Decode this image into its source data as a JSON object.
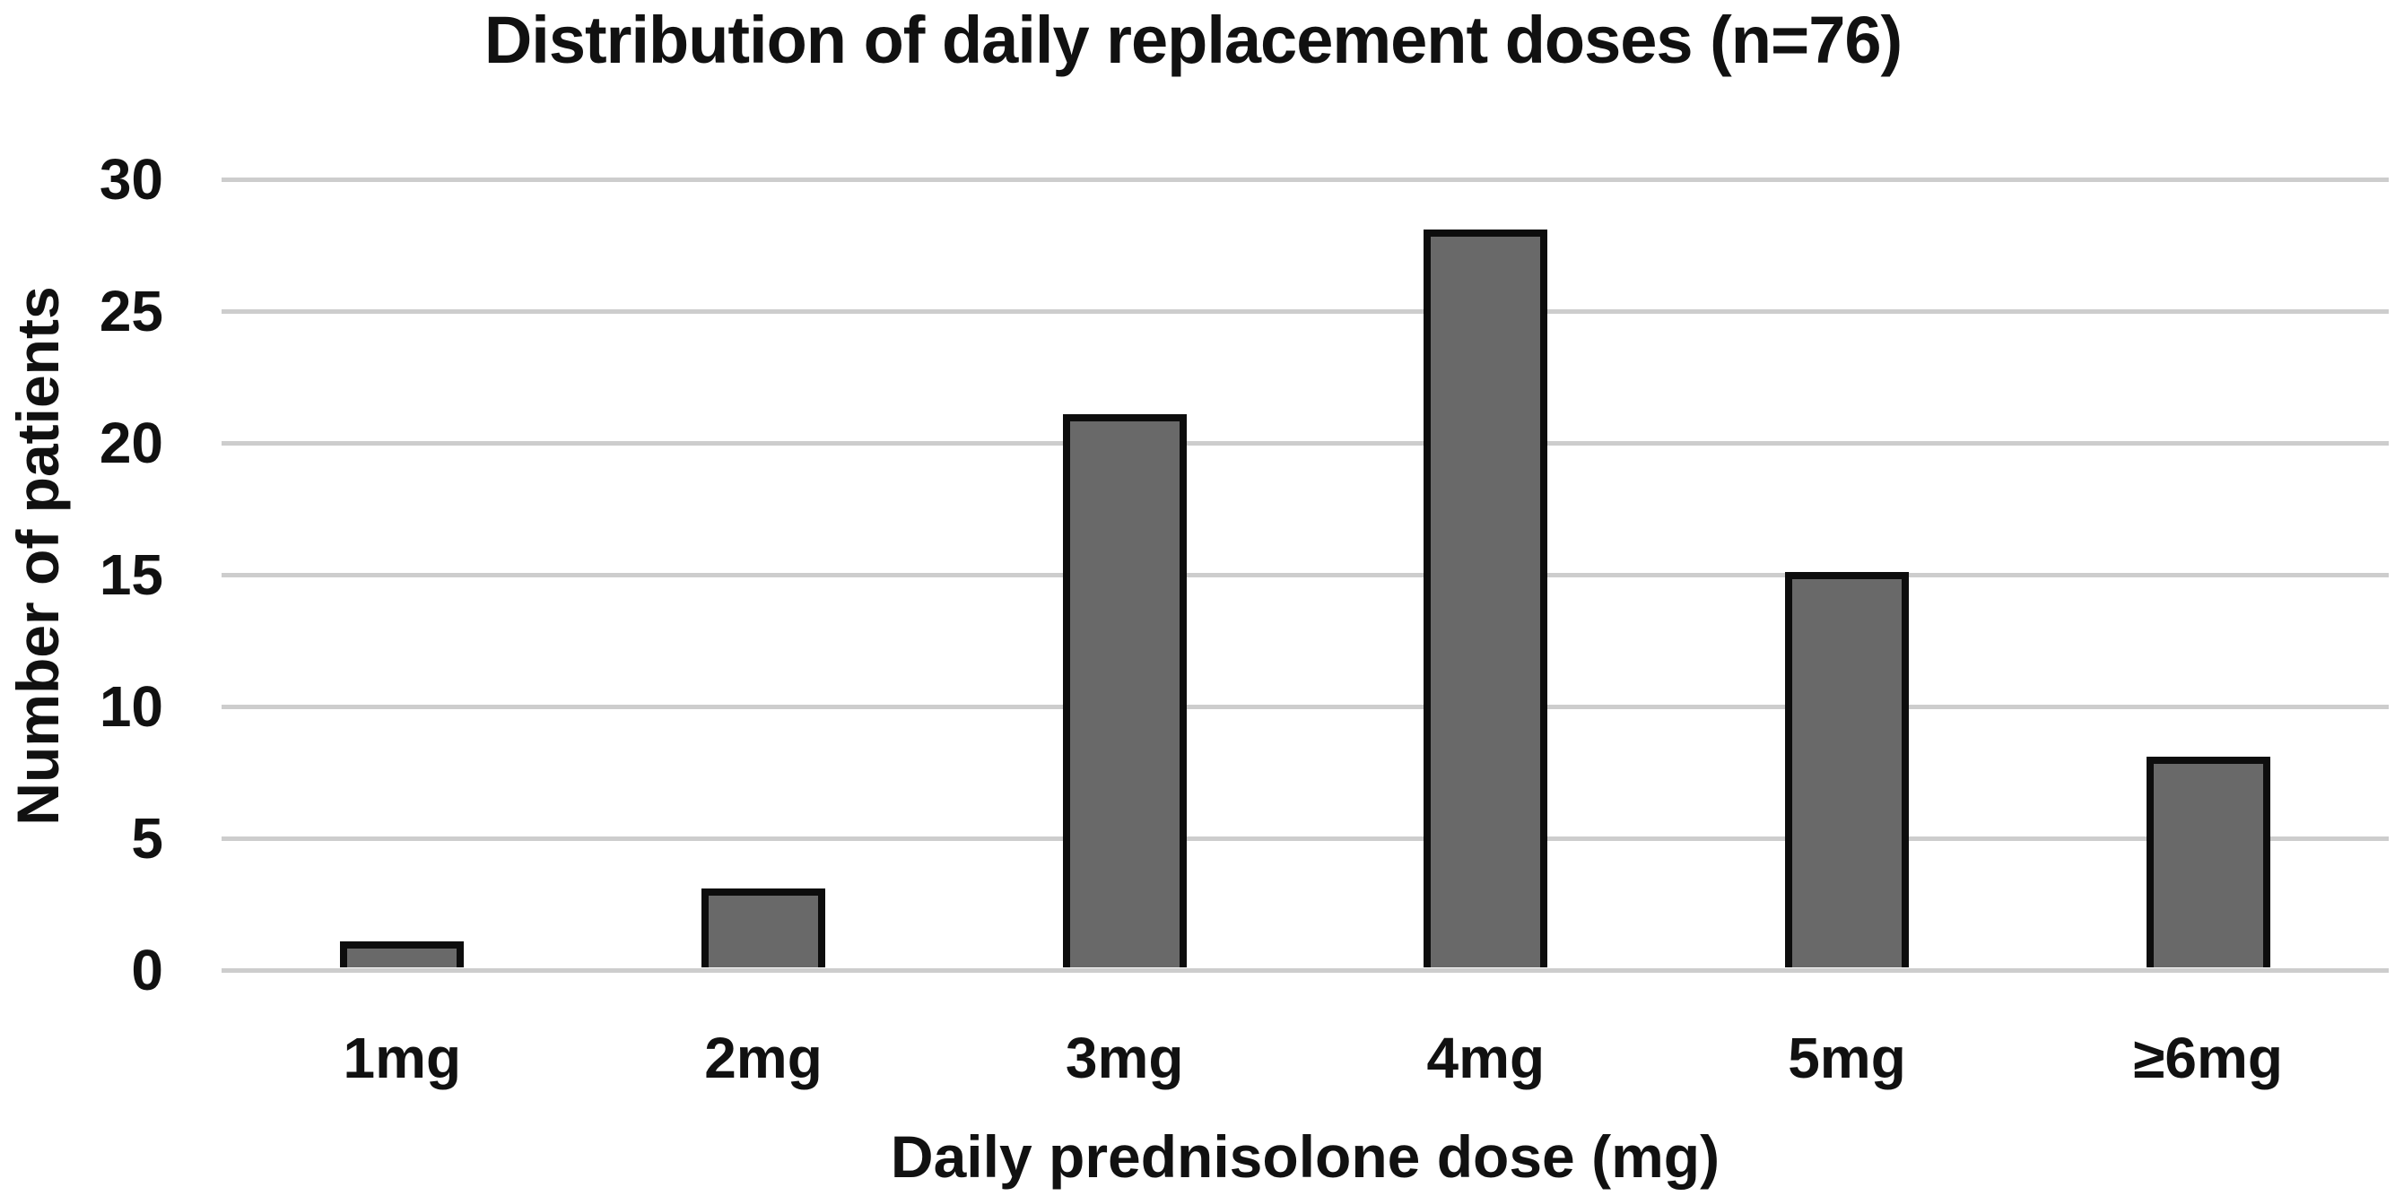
{
  "chart_data": {
    "type": "bar",
    "title": "Distribution of daily replacement doses (n=76)",
    "xlabel": "Daily prednisolone dose (mg)",
    "ylabel": "Number of patients",
    "categories": [
      "1mg",
      "2mg",
      "3mg",
      "4mg",
      "5mg",
      "≥6mg"
    ],
    "values": [
      1,
      3,
      21,
      28,
      15,
      8
    ],
    "ylim": [
      0,
      30
    ],
    "yticks": [
      0,
      5,
      10,
      15,
      20,
      25,
      30
    ],
    "grid": "horizontal-only",
    "legend_position": "none",
    "bar_fill_color": "#696969",
    "bar_border_color": "#0d0d0d",
    "gridline_color": "#cdcdcd",
    "text_color": "#111111",
    "background_color": "#ffffff"
  }
}
